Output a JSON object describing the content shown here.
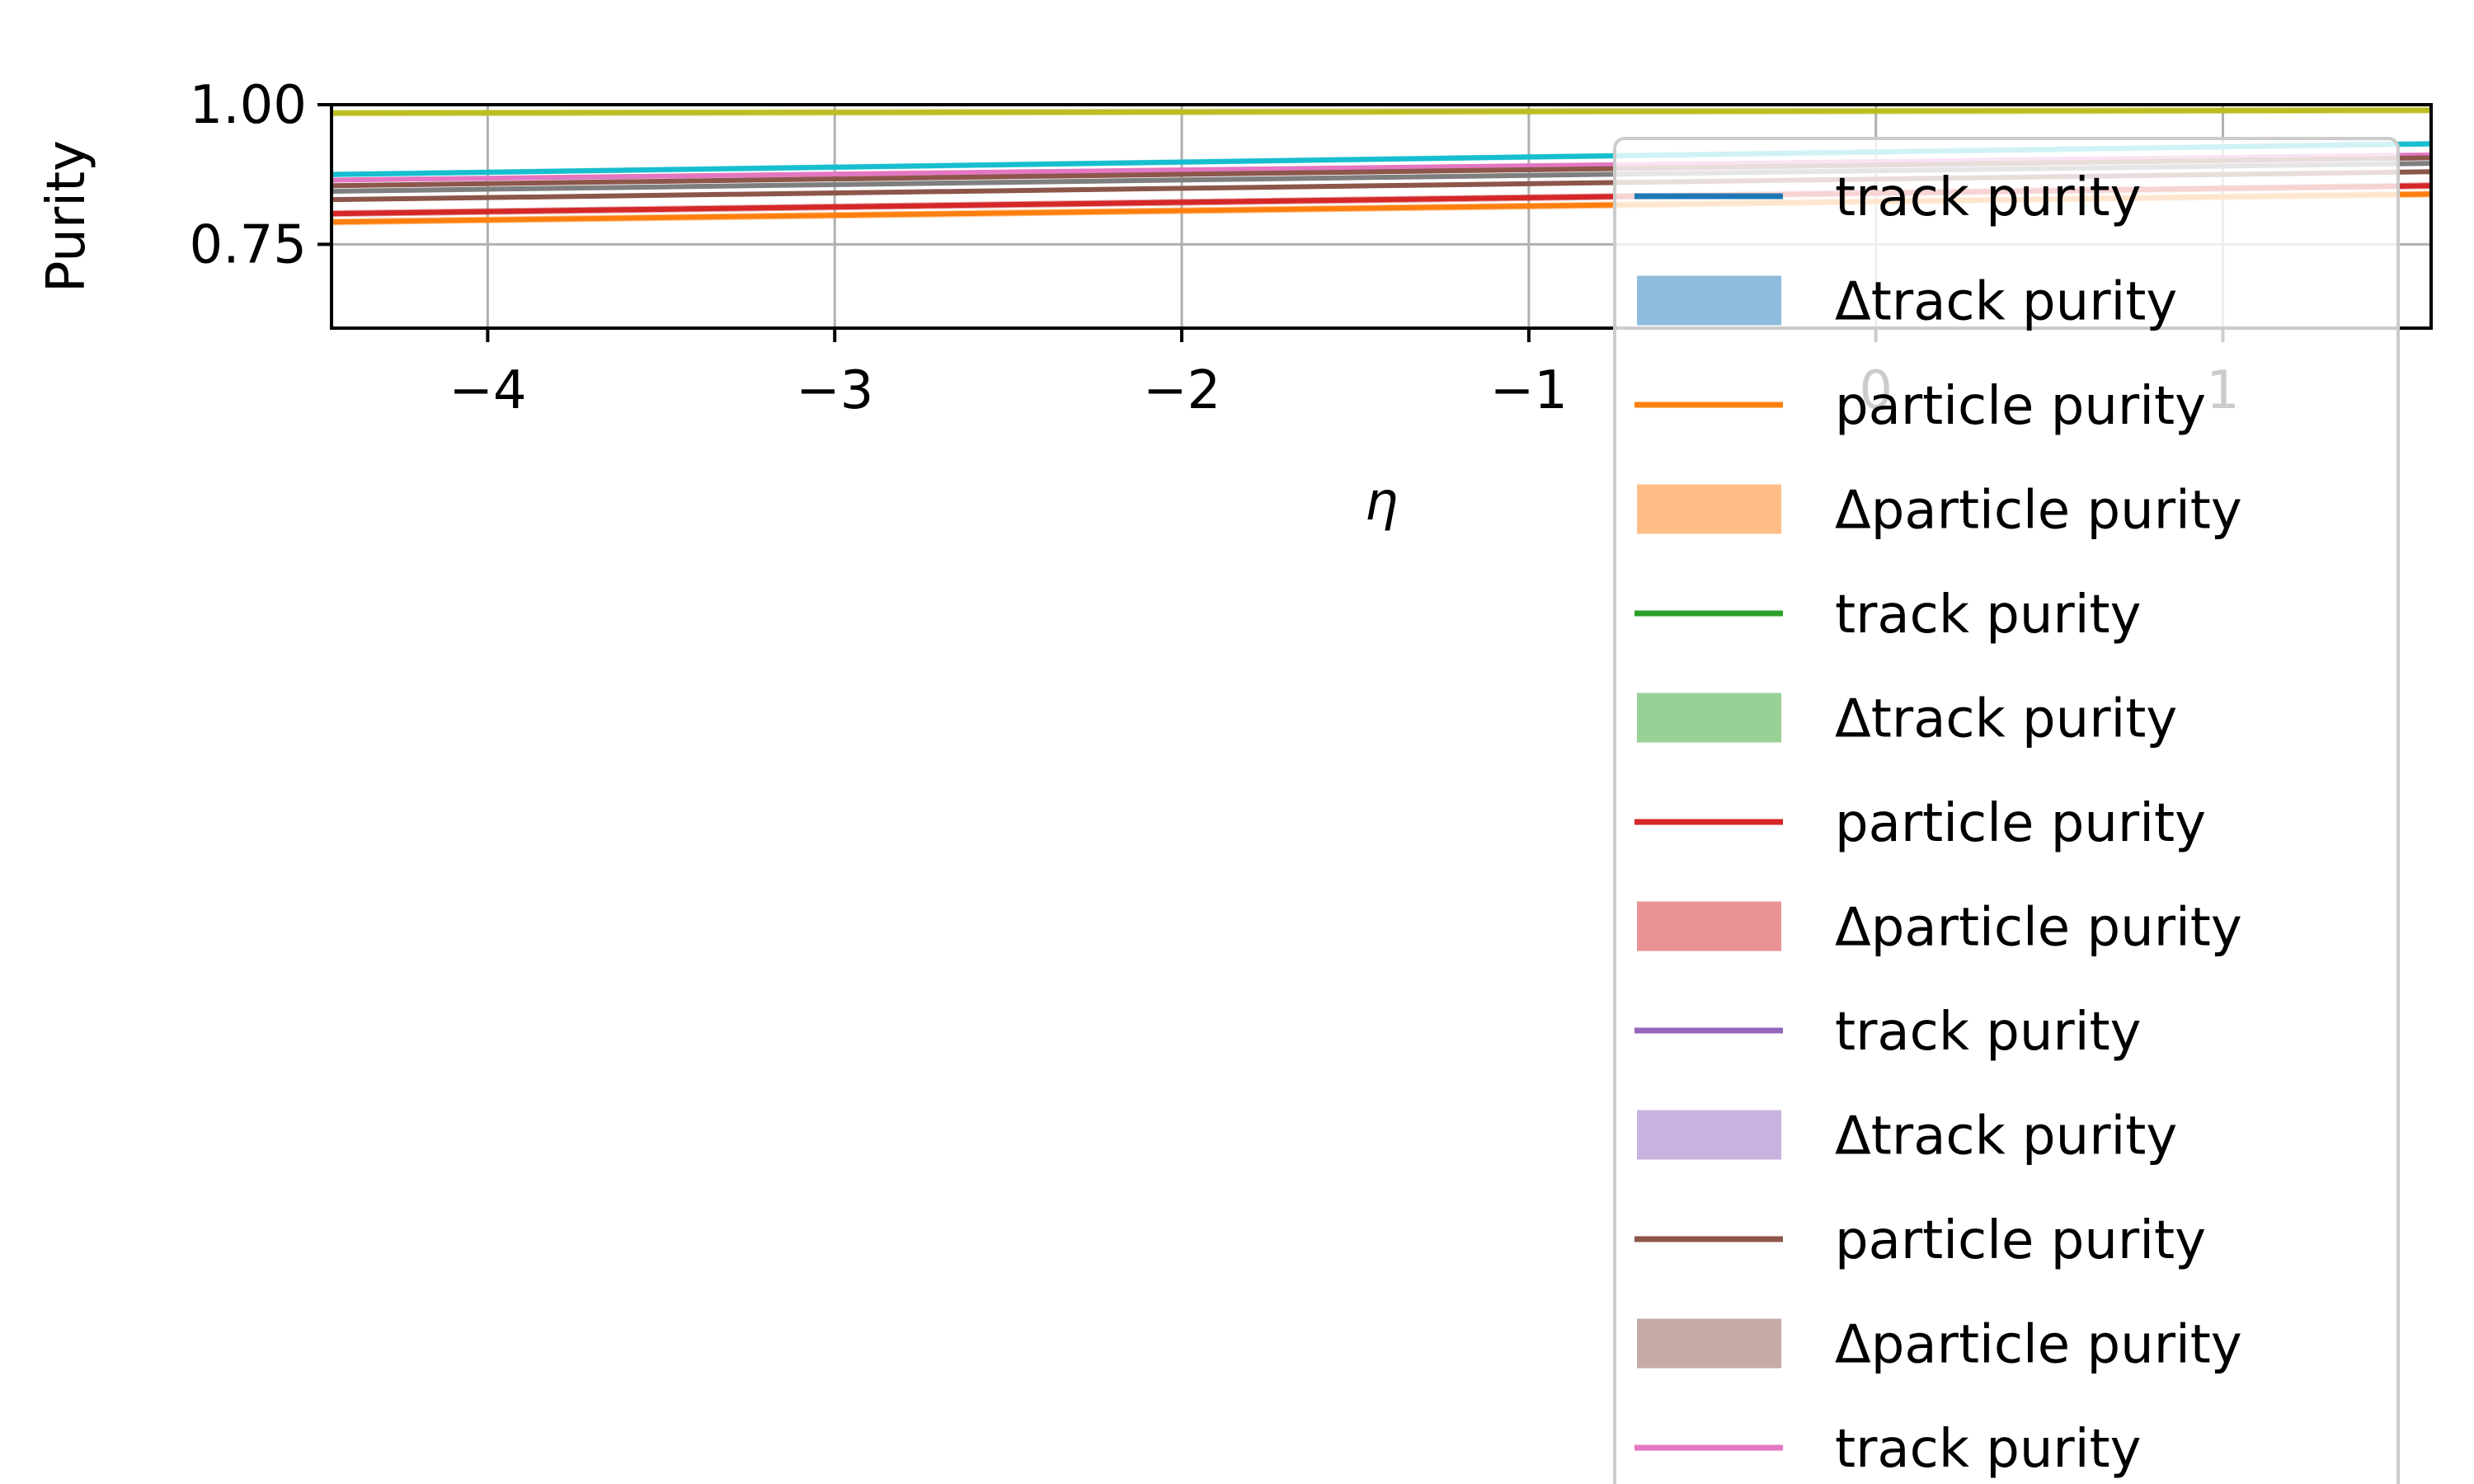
{
  "chart_data": {
    "type": "line",
    "title": "",
    "xlabel": "η",
    "ylabel": "Purity",
    "xlim": [
      -4.45,
      1.6
    ],
    "ylim": [
      0.6,
      1.0
    ],
    "grid": true,
    "legend_position": "right (overflowing axes)",
    "x_ticks": [
      -4,
      -3,
      -2,
      -1,
      0,
      1
    ],
    "x_tick_labels": [
      "−4",
      "−3",
      "−2",
      "−1",
      "0",
      "1"
    ],
    "y_ticks": [
      0.75,
      1.0
    ],
    "y_tick_labels": [
      "0.75",
      "1.00"
    ],
    "series": [
      {
        "color": "#bcbd22",
        "x": [
          -4.45,
          1.6
        ],
        "y": [
          0.985,
          0.99
        ],
        "band_width": 0.012
      },
      {
        "color": "#17becf",
        "x": [
          -4.45,
          1.6
        ],
        "y": [
          0.875,
          0.93
        ],
        "band_width": 0.01
      },
      {
        "color": "#e377c2",
        "x": [
          -4.45,
          1.6
        ],
        "y": [
          0.865,
          0.91
        ],
        "band_width": 0.006
      },
      {
        "color": "#8c564b",
        "x": [
          -4.45,
          1.6
        ],
        "y": [
          0.855,
          0.905
        ],
        "band_width": 0.006
      },
      {
        "color": "#7f7f7f",
        "x": [
          -4.45,
          1.6
        ],
        "y": [
          0.845,
          0.895
        ],
        "band_width": 0.006
      },
      {
        "color": "#8c564b",
        "x": [
          -4.45,
          1.6
        ],
        "y": [
          0.83,
          0.88
        ],
        "band_width": 0.008
      },
      {
        "color": "#1f77b4",
        "x": [
          -4.45,
          1.6
        ],
        "y": [
          0.805,
          0.855
        ],
        "band_width": 0.008
      },
      {
        "color": "#d62728",
        "x": [
          -4.45,
          1.6
        ],
        "y": [
          0.805,
          0.855
        ],
        "band_width": 0.012
      },
      {
        "color": "#ff7f0e",
        "x": [
          -4.45,
          1.6
        ],
        "y": [
          0.79,
          0.84
        ],
        "band_width": 0.012
      }
    ],
    "legend": [
      {
        "label": "track purity",
        "kind": "line",
        "color": "#1f77b4"
      },
      {
        "label": "Δtrack purity",
        "kind": "patch",
        "color": "#8fbbdc"
      },
      {
        "label": "particle purity",
        "kind": "line",
        "color": "#ff7f0e"
      },
      {
        "label": "Δparticle purity",
        "kind": "patch",
        "color": "#ffbe87"
      },
      {
        "label": "track purity",
        "kind": "line",
        "color": "#2ca02c"
      },
      {
        "label": "Δtrack purity",
        "kind": "patch",
        "color": "#98d095"
      },
      {
        "label": "particle purity",
        "kind": "line",
        "color": "#d62728"
      },
      {
        "label": "Δparticle purity",
        "kind": "patch",
        "color": "#ea9394"
      },
      {
        "label": "track purity",
        "kind": "line",
        "color": "#9467bd"
      },
      {
        "label": "Δtrack purity",
        "kind": "patch",
        "color": "#c9b3de"
      },
      {
        "label": "particle purity",
        "kind": "line",
        "color": "#8c564b"
      },
      {
        "label": "Δparticle purity",
        "kind": "patch",
        "color": "#c5aaa5"
      },
      {
        "label": "track purity",
        "kind": "line",
        "color": "#e377c2"
      }
    ]
  }
}
